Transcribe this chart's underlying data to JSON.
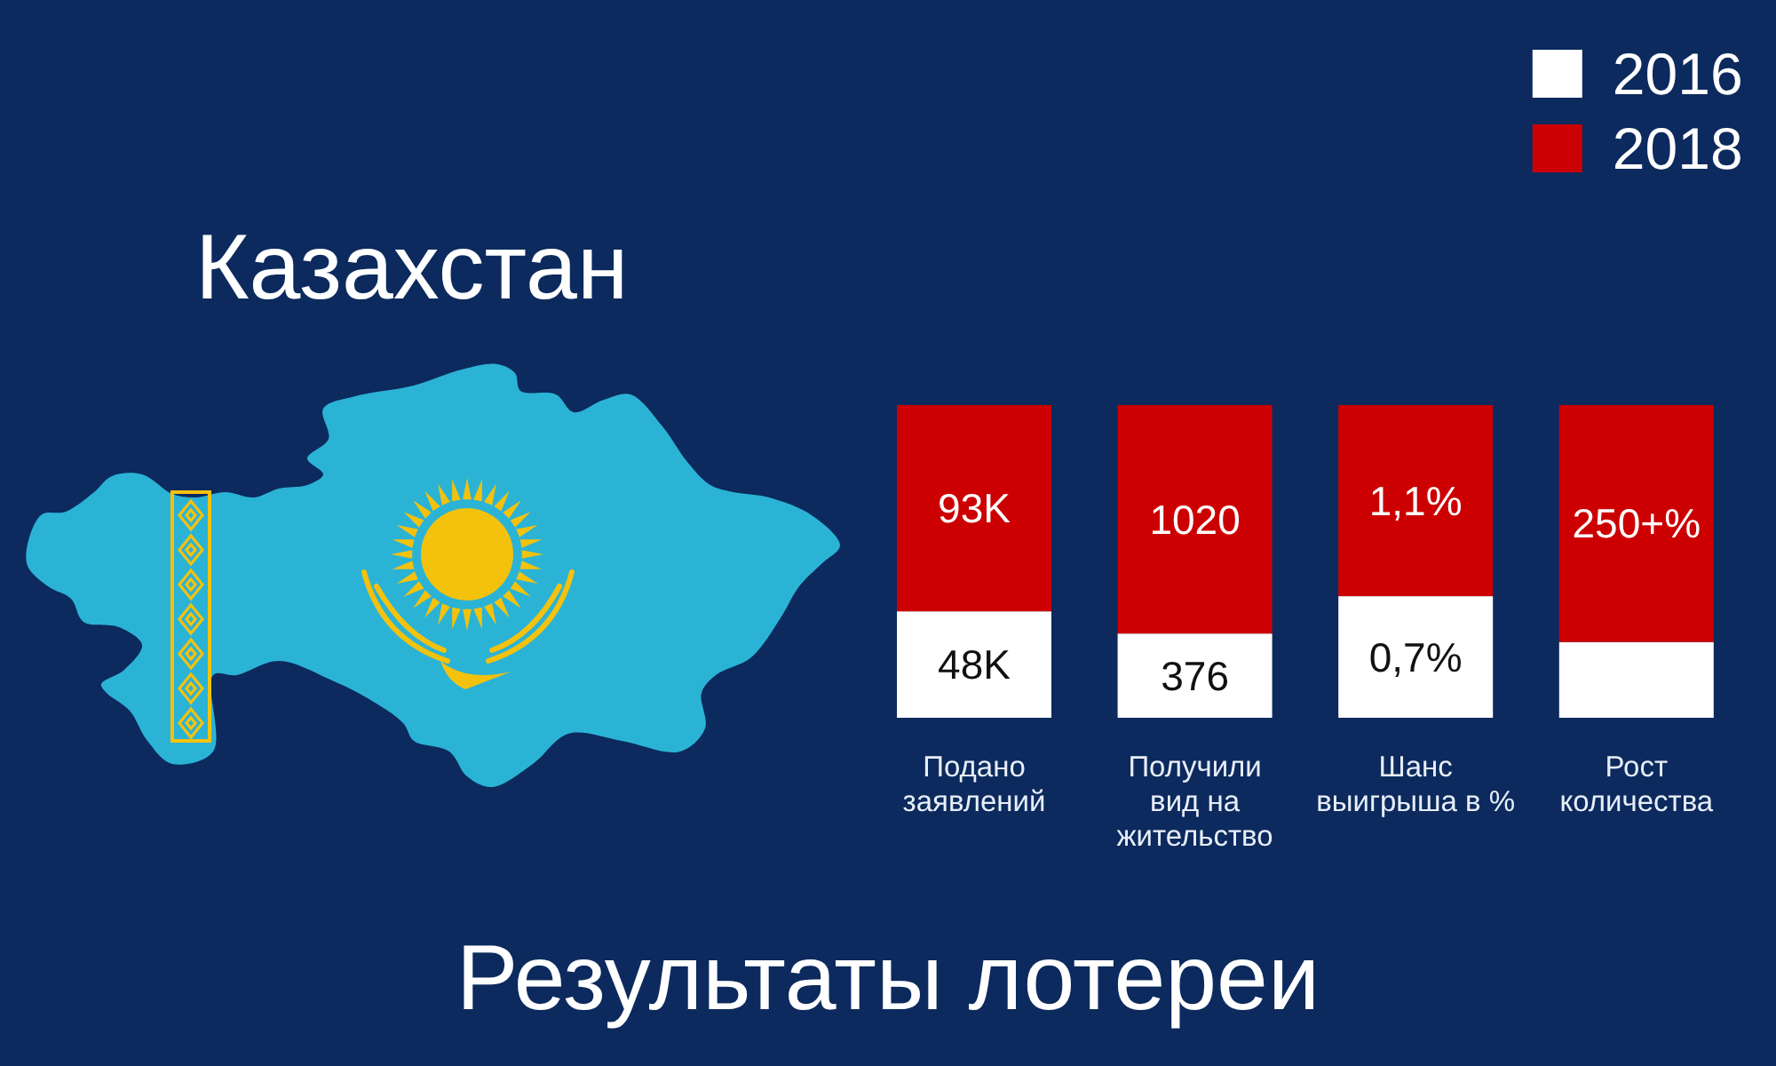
{
  "chart_data": [
    {
      "type": "other",
      "title": "Результаты лотереи",
      "subtitle": "Казахстан"
    },
    {
      "type": "bar",
      "categories": [
        "Подано заявлений"
      ],
      "stacked": true,
      "series": [
        {
          "color": "#ffffff",
          "values": [
            48000
          ],
          "value_labels": [
            "48K"
          ]
        },
        {
          "color": "#cc0000",
          "values": [
            93000
          ],
          "value_labels": [
            "93K"
          ]
        }
      ]
    },
    {
      "type": "bar",
      "categories": [
        "Получили вид на жительство"
      ],
      "stacked": true,
      "series": [
        {
          "color": "#ffffff",
          "values": [
            376
          ],
          "value_labels": [
            "376"
          ]
        },
        {
          "color": "#cc0000",
          "values": [
            1020
          ],
          "value_labels": [
            "1020"
          ]
        }
      ]
    },
    {
      "type": "bar",
      "categories": [
        "Шанс выигрыша в %"
      ],
      "stacked": true,
      "series": [
        {
          "color": "#ffffff",
          "values": [
            0.7
          ],
          "value_labels": [
            "0,7%"
          ]
        },
        {
          "color": "#cc0000",
          "values": [
            1.1
          ],
          "value_labels": [
            "1,1%"
          ]
        }
      ]
    },
    {
      "type": "bar",
      "categories": [
        "Рост количества"
      ],
      "stacked": true,
      "legend": "top",
      "series": [
        {
          "name": "2016",
          "color": "#ffffff",
          "values": [
            80
          ],
          "value_labels": [
            null
          ]
        },
        {
          "name": "2018",
          "color": "#cc0000",
          "values": [
            250
          ],
          "value_labels": [
            "250+%"
          ]
        }
      ]
    }
  ]
}
